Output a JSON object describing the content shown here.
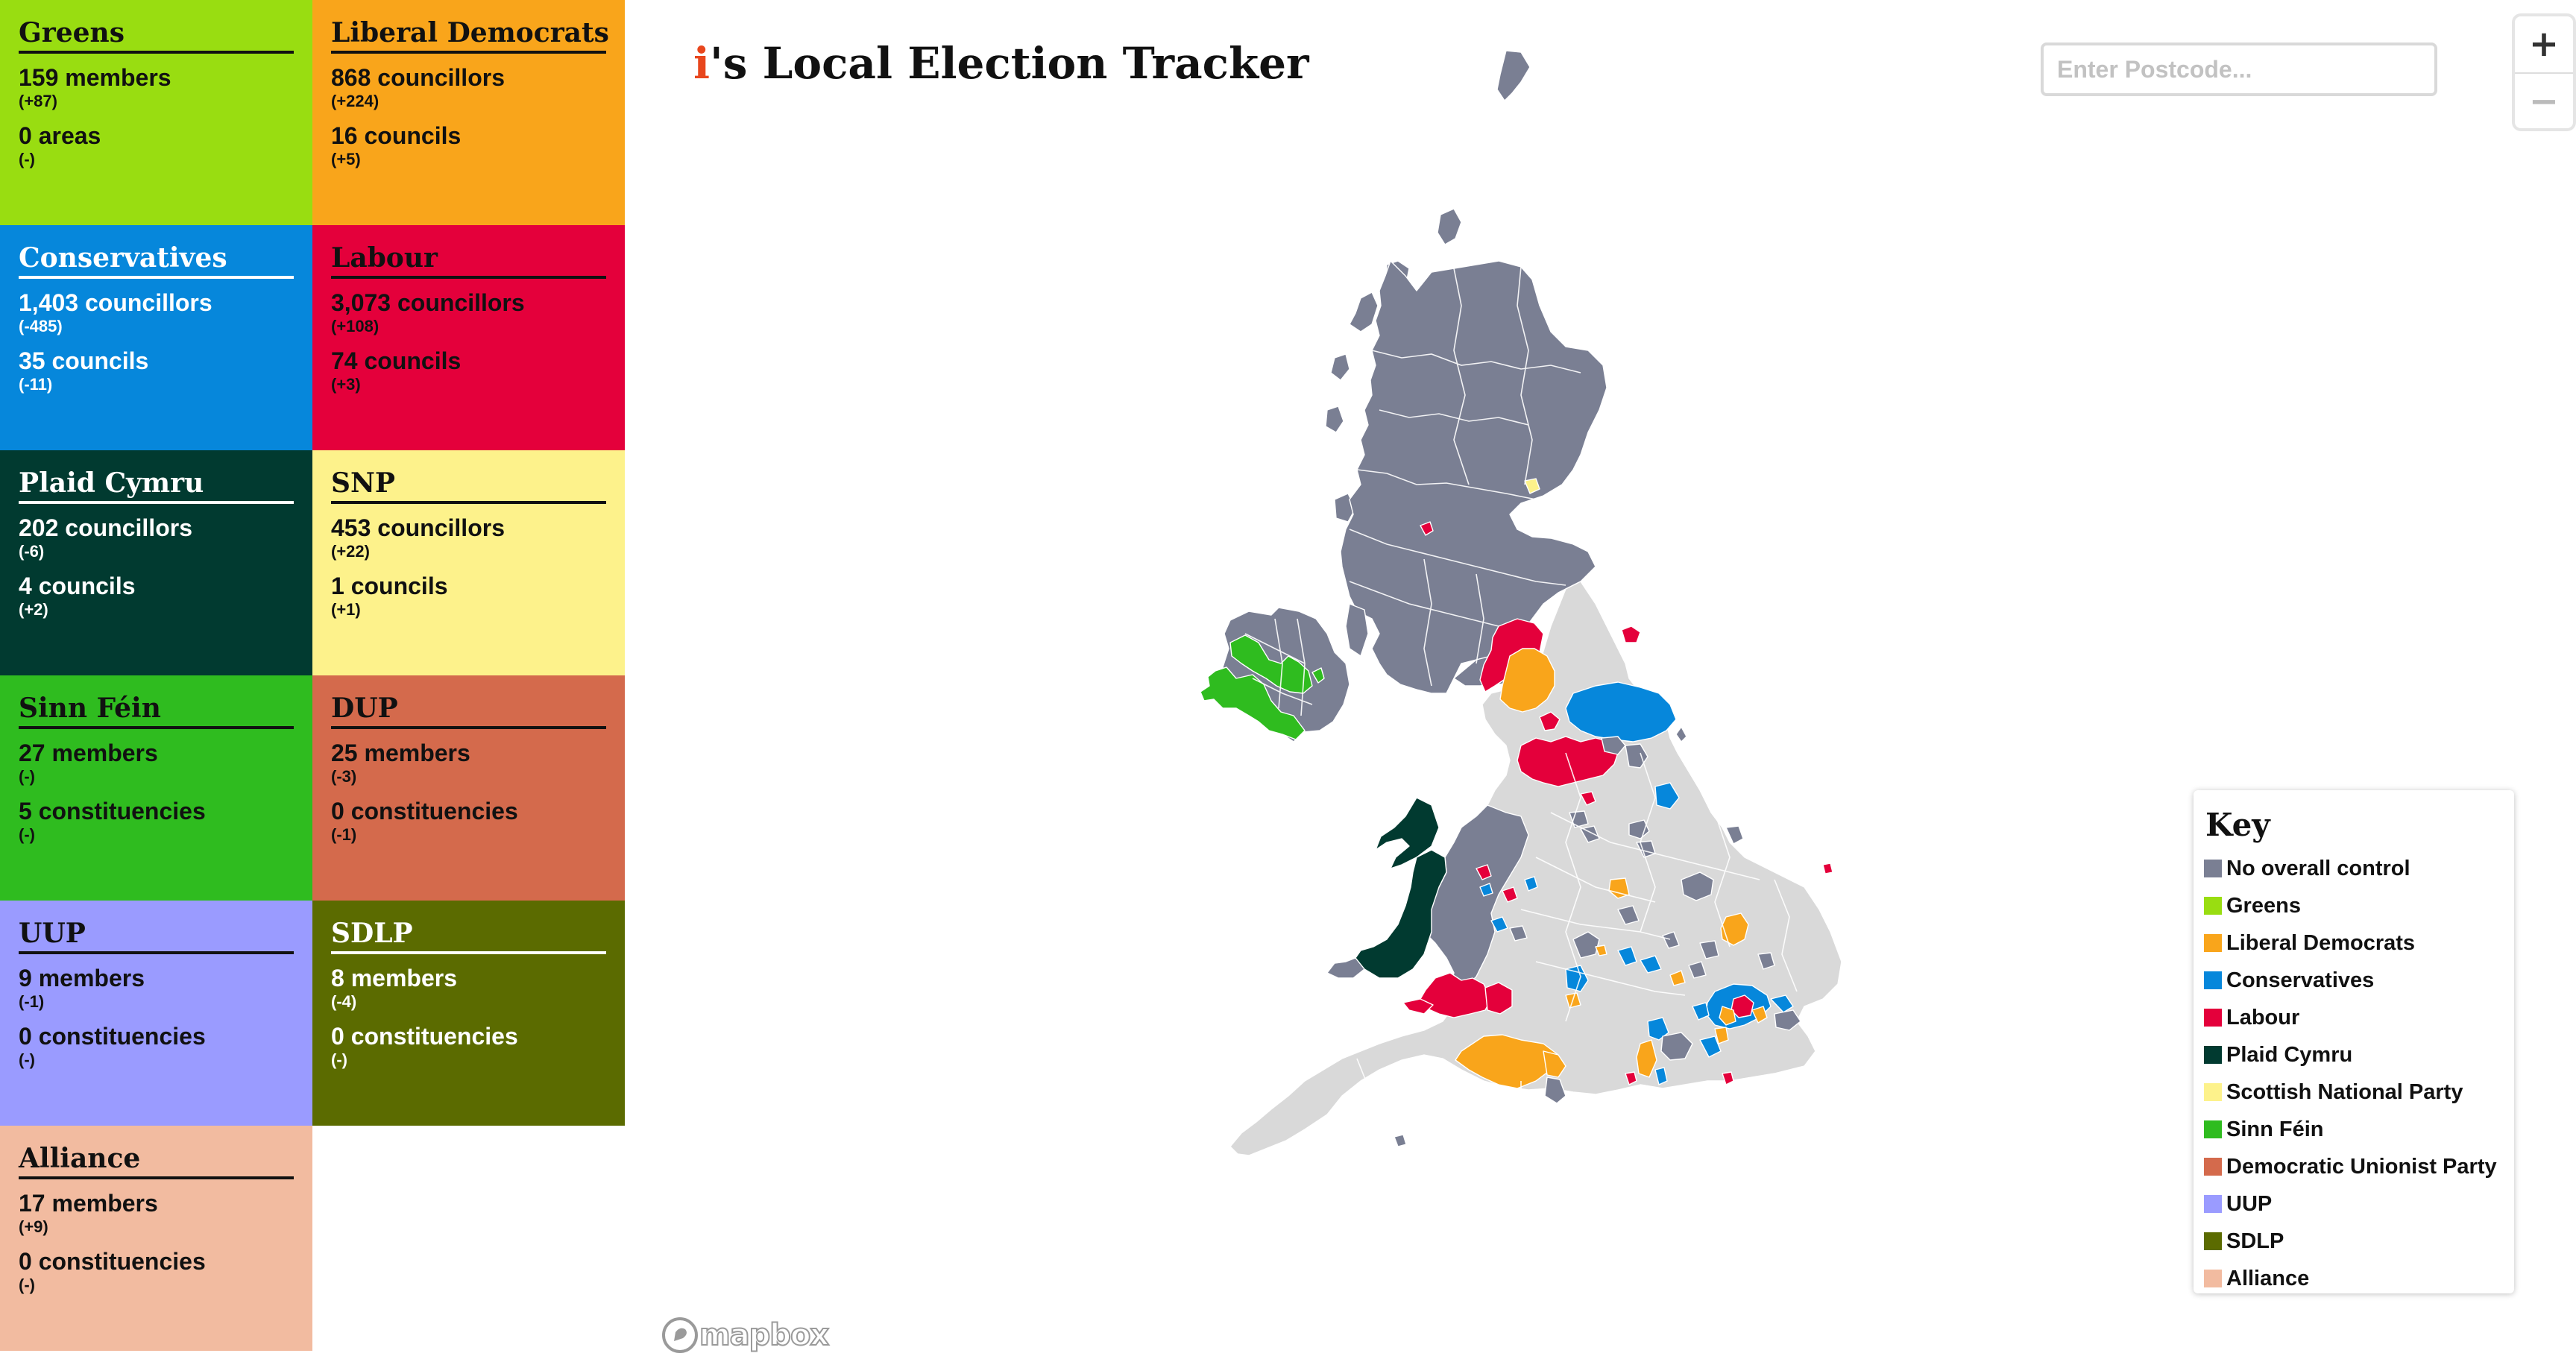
{
  "app": {
    "title_accent": "i",
    "title_rest": "'s Local Election Tracker"
  },
  "search": {
    "placeholder": "Enter Postcode..."
  },
  "zoom": {
    "in_label": "+",
    "out_label": "−"
  },
  "parties": [
    {
      "name": "Greens",
      "line1": "159 members",
      "line1_change": "(+87)",
      "line2": "0 areas",
      "line2_change": "(-)",
      "bg": "#99dd11",
      "fg": "#111111"
    },
    {
      "name": "Liberal Democrats",
      "line1": "868 councillors",
      "line1_change": "(+224)",
      "line2": "16 councils",
      "line2_change": "(+5)",
      "bg": "#f9a51b",
      "fg": "#111111"
    },
    {
      "name": "Conservatives",
      "line1": "1,403 councillors",
      "line1_change": "(-485)",
      "line2": "35 councils",
      "line2_change": "(-11)",
      "bg": "#0687db",
      "fg": "#ffffff"
    },
    {
      "name": "Labour",
      "line1": "3,073 councillors",
      "line1_change": "(+108)",
      "line2": "74 councils",
      "line2_change": "(+3)",
      "bg": "#e4003b",
      "fg": "#111111"
    },
    {
      "name": "Plaid Cymru",
      "line1": "202 councillors",
      "line1_change": "(-6)",
      "line2": "4 councils",
      "line2_change": "(+2)",
      "bg": "#013a30",
      "fg": "#ffffff"
    },
    {
      "name": "SNP",
      "line1": "453 councillors",
      "line1_change": "(+22)",
      "line2": "1 councils",
      "line2_change": "(+1)",
      "bg": "#fdf28b",
      "fg": "#111111"
    },
    {
      "name": "Sinn Féin",
      "line1": "27 members",
      "line1_change": "(-)",
      "line2": "5 constituencies",
      "line2_change": "(-)",
      "bg": "#2fbc1f",
      "fg": "#111111"
    },
    {
      "name": "DUP",
      "line1": "25 members",
      "line1_change": "(-3)",
      "line2": "0 constituencies",
      "line2_change": "(-1)",
      "bg": "#d46a4c",
      "fg": "#111111"
    },
    {
      "name": "UUP",
      "line1": "9 members",
      "line1_change": "(-1)",
      "line2": "0 constituencies",
      "line2_change": "(-)",
      "bg": "#9a9bff",
      "fg": "#111111"
    },
    {
      "name": "SDLP",
      "line1": "8 members",
      "line1_change": "(-4)",
      "line2": "0 constituencies",
      "line2_change": "(-)",
      "bg": "#5b6b00",
      "fg": "#ffffff"
    },
    {
      "name": "Alliance",
      "line1": "17 members",
      "line1_change": "(+9)",
      "line2": "0 constituencies",
      "line2_change": "(-)",
      "bg": "#f2bba0",
      "fg": "#111111"
    }
  ],
  "key": {
    "title": "Key",
    "items": [
      {
        "label": "No overall control",
        "color": "#7a7f93"
      },
      {
        "label": "Greens",
        "color": "#99dd11"
      },
      {
        "label": "Liberal Democrats",
        "color": "#f9a51b"
      },
      {
        "label": "Conservatives",
        "color": "#0687db"
      },
      {
        "label": "Labour",
        "color": "#e4003b"
      },
      {
        "label": "Plaid Cymru",
        "color": "#013a30"
      },
      {
        "label": "Scottish National Party",
        "color": "#fdf28b"
      },
      {
        "label": "Sinn Féin",
        "color": "#2fbc1f"
      },
      {
        "label": "Democratic Unionist Party",
        "color": "#d46a4c"
      },
      {
        "label": "UUP",
        "color": "#9a9bff"
      },
      {
        "label": "SDLP",
        "color": "#5b6b00"
      },
      {
        "label": "Alliance",
        "color": "#f2bba0"
      }
    ]
  },
  "map": {
    "attribution": "mapbox",
    "colors": {
      "no_control": "#7a7f93",
      "no_election": "#d9d9d9",
      "greens": "#99dd11",
      "libdem": "#f9a51b",
      "conservative": "#0687db",
      "labour": "#e4003b",
      "plaid": "#013a30",
      "snp": "#fdf28b",
      "sinn_fein": "#2fbc1f",
      "border": "#ffffff"
    }
  }
}
